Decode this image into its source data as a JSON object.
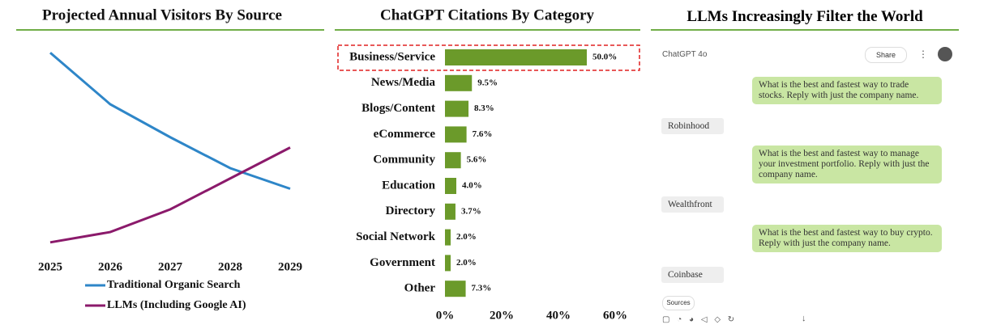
{
  "chart_data": [
    {
      "type": "line",
      "title": "Projected Annual Visitors By Source",
      "categories": [
        "2025",
        "2026",
        "2027",
        "2028",
        "2029"
      ],
      "series": [
        {
          "name": "Traditional Organic Search",
          "color": "#2e86c8",
          "values": [
            96,
            71,
            55,
            40,
            30
          ]
        },
        {
          "name": "LLMs (Including Google AI)",
          "color": "#8b1a6b",
          "values": [
            4,
            9,
            20,
            35,
            50
          ]
        }
      ],
      "ylim": [
        0,
        100
      ]
    },
    {
      "type": "barh",
      "title": "ChatGPT Citations By Category",
      "color": "#6b9a2a",
      "categories": [
        "Business/Service",
        "News/Media",
        "Blogs/Content",
        "eCommerce",
        "Community",
        "Education",
        "Directory",
        "Social Network",
        "Government",
        "Other"
      ],
      "values": [
        50.0,
        9.5,
        8.3,
        7.6,
        5.6,
        4.0,
        3.7,
        2.0,
        2.0,
        7.3
      ],
      "value_labels": [
        "50.0%",
        "9.5%",
        "8.3%",
        "7.6%",
        "5.6%",
        "4.0%",
        "3.7%",
        "2.0%",
        "2.0%",
        "7.3%"
      ],
      "xlim": [
        0,
        60
      ],
      "xticks": [
        {
          "value": 0,
          "label": "0%"
        },
        {
          "value": 20,
          "label": "20%"
        },
        {
          "value": 40,
          "label": "40%"
        },
        {
          "value": 60,
          "label": "60%"
        }
      ]
    }
  ],
  "chat": {
    "title": "LLMs Increasingly Filter the World",
    "model": "ChatGPT 4o",
    "share": "Share",
    "sources": "Sources",
    "exchanges": [
      {
        "question": "What is the best and fastest way to trade stocks. Reply with just the company name.",
        "answer": "Robinhood"
      },
      {
        "question": "What is the best and fastest way to manage your investment portfolio. Reply with just the company name.",
        "answer": "Wealthfront"
      },
      {
        "question": "What is the best and fastest way to buy crypto. Reply with just the company name.",
        "answer": "Coinbase"
      }
    ]
  }
}
